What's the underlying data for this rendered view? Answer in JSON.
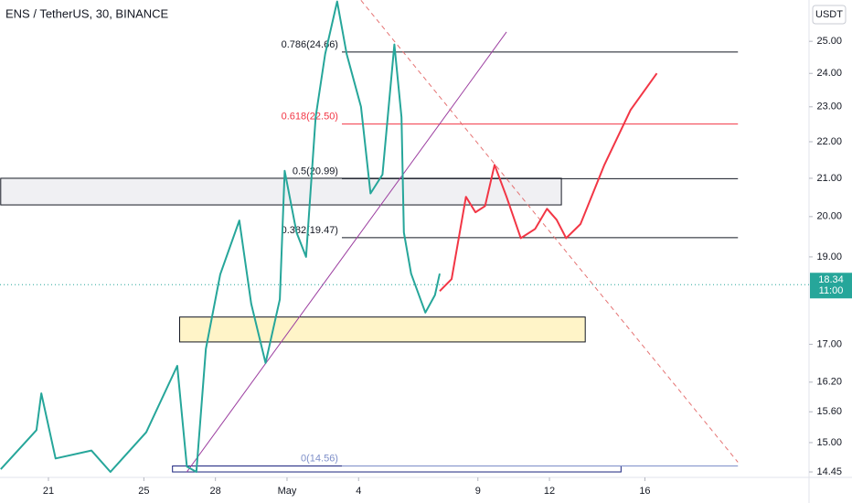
{
  "chart_data": {
    "type": "line",
    "title": "ENS / TetherUS, 30, BINANCE",
    "currency": "USDT",
    "log_scale": true,
    "xlim": [
      18.97,
      52.88
    ],
    "ylim": [
      14.35,
      26.35
    ],
    "xticks": [
      21,
      25,
      28,
      {
        "value": 31,
        "label": "May"
      },
      {
        "value": 34,
        "label": "4"
      },
      {
        "value": 39,
        "label": "9"
      },
      {
        "value": 42,
        "label": "12"
      },
      {
        "value": 46,
        "label": "16"
      }
    ],
    "yticks": [
      {
        "value": 25,
        "label": "25.00"
      },
      {
        "value": 24,
        "label": "24.00"
      },
      {
        "value": 23,
        "label": "23.00"
      },
      {
        "value": 22,
        "label": "22.00"
      },
      {
        "value": 21,
        "label": "21.00"
      },
      {
        "value": 20,
        "label": "20.00"
      },
      {
        "value": 19,
        "label": "19.00"
      },
      {
        "value": 17,
        "label": "17.00"
      },
      {
        "value": 16.2,
        "label": "16.20"
      },
      {
        "value": 15.6,
        "label": "15.60"
      },
      {
        "value": 15,
        "label": "15.00"
      },
      14.45
    ],
    "series": [
      {
        "color": "#26a69a",
        "x": [
          19.0,
          20.5,
          20.7,
          21.3,
          22.8,
          23.6,
          25.1,
          26.4,
          26.8,
          27.2,
          27.6,
          28.2,
          29.0,
          29.5,
          30.1,
          30.7,
          30.9,
          31.4,
          31.8,
          32.2,
          32.6,
          33.1,
          33.5,
          34.1,
          34.5,
          35.0,
          35.5,
          35.8,
          35.9,
          36.2,
          36.8,
          37.2,
          37.4
        ],
        "values": [
          14.5,
          15.24,
          15.97,
          14.7,
          14.85,
          14.45,
          15.2,
          16.54,
          14.55,
          14.45,
          16.9,
          18.58,
          19.9,
          17.9,
          16.6,
          18.0,
          21.2,
          19.6,
          19.0,
          22.7,
          24.6,
          26.3,
          24.6,
          23.0,
          20.6,
          21.1,
          24.9,
          22.7,
          19.6,
          18.6,
          17.7,
          18.1,
          18.6
        ]
      },
      {
        "color": "#f23645",
        "x": [
          37.4,
          37.9,
          38.5,
          38.9,
          39.3,
          39.7,
          40.2,
          40.8,
          41.4,
          41.9,
          42.3,
          42.7,
          43.3,
          44.3,
          45.4,
          46.5
        ],
        "values": [
          18.19,
          18.47,
          20.51,
          20.11,
          20.27,
          21.36,
          20.51,
          19.46,
          19.69,
          20.2,
          19.92,
          19.46,
          19.81,
          21.36,
          22.91,
          24.0
        ]
      }
    ],
    "fib_x": [
      33.3,
      49.9
    ],
    "fib_levels": [
      {
        "label": "0.786(24.66)",
        "value": 24.66,
        "color": "#131722"
      },
      {
        "label": "0.618(22.50)",
        "value": 22.5,
        "color": "#f23645"
      },
      {
        "label": "0.5(20.99)",
        "value": 20.99,
        "color": "#131722"
      },
      {
        "label": "0.382(19.47)",
        "value": 19.47,
        "color": "#131722"
      },
      {
        "label": "0(14.56)",
        "value": 14.56,
        "color": "#7e8fc9"
      }
    ],
    "zones": [
      {
        "x": [
          19.0,
          42.5
        ],
        "y": [
          20.3,
          21.0
        ],
        "fill": "#f0f0f3",
        "stroke": "#131722"
      },
      {
        "x": [
          26.5,
          43.5
        ],
        "y": [
          17.05,
          17.6
        ],
        "fill": "#fff4c8",
        "stroke": "#131722"
      },
      {
        "x": [
          26.2,
          45.0
        ],
        "y": [
          14.45,
          14.56
        ],
        "fill": "#ffffff",
        "stroke": "#1a237e"
      }
    ],
    "trend_lines": [
      {
        "x": [
          26.8,
          40.2
        ],
        "y": [
          14.45,
          25.3
        ],
        "color": "#9c3fa0",
        "dashed": false
      },
      {
        "x": [
          34.1,
          49.9
        ],
        "y": [
          26.34,
          14.63
        ],
        "color": "#e57373",
        "dashed": true
      }
    ],
    "last_price": {
      "value": 18.34,
      "countdown": "11:00",
      "color": "#26a69a"
    }
  }
}
